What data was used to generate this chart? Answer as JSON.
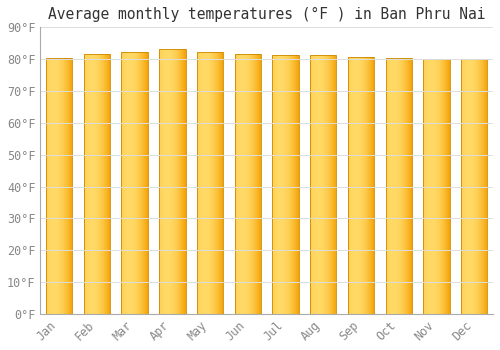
{
  "title": "Average monthly temperatures (°F ) in Ban Phru Nai",
  "months": [
    "Jan",
    "Feb",
    "Mar",
    "Apr",
    "May",
    "Jun",
    "Jul",
    "Aug",
    "Sep",
    "Oct",
    "Nov",
    "Dec"
  ],
  "values": [
    80.3,
    81.5,
    82.3,
    83.1,
    82.3,
    81.7,
    81.3,
    81.3,
    80.6,
    80.4,
    80.1,
    79.9
  ],
  "bar_color_center": "#FFB300",
  "bar_color_edge": "#F5A000",
  "bar_color_highlight": "#FFD966",
  "background_color": "#ffffff",
  "plot_bg_color": "#ffffff",
  "grid_color": "#dddddd",
  "ylim": [
    0,
    90
  ],
  "ytick_step": 10,
  "title_fontsize": 10.5,
  "tick_fontsize": 8.5,
  "bar_edge_color": "#CC8800",
  "bar_width": 0.7,
  "spine_color": "#aaaaaa"
}
